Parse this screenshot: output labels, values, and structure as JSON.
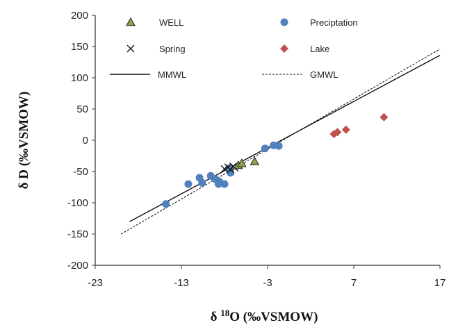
{
  "chart_data": {
    "type": "scatter",
    "xlabel": "δ 18O (‰VSMOW)",
    "xlabel_parts": {
      "prefix": "δ ",
      "sup": "18",
      "suffix": "O (‰VSMOW)"
    },
    "ylabel": "δ D (‰VSMOW)",
    "xlim": [
      -23,
      17
    ],
    "ylim": [
      -200,
      200
    ],
    "xticks": [
      "-23",
      "-13",
      "-3",
      "7",
      "17"
    ],
    "yticks": [
      "-200",
      "-150",
      "-100",
      "-50",
      "0",
      "50",
      "100",
      "150",
      "200"
    ],
    "grid": false,
    "legend_position": "top",
    "series": [
      {
        "name": "WELL",
        "marker": "triangle",
        "color": "#8ea34a",
        "x": [
          -6.4,
          -6.0,
          -4.5
        ],
        "y": [
          -40,
          -37,
          -34
        ]
      },
      {
        "name": "Preciptation",
        "marker": "circle",
        "color": "#4f81bd",
        "x": [
          -14.8,
          -12.2,
          -10.9,
          -10.6,
          -9.6,
          -9.1,
          -8.7,
          -8.6,
          -8.0,
          -7.5,
          -7.3,
          -3.3,
          -2.3,
          -1.7
        ],
        "y": [
          -102,
          -70,
          -60,
          -68,
          -57,
          -62,
          -70,
          -66,
          -70,
          -45,
          -52,
          -13,
          -8,
          -9
        ]
      },
      {
        "name": "Spring",
        "marker": "x",
        "color": "#1a1a1a",
        "x": [
          -8.0,
          -7.6,
          -7.3,
          -7.0,
          -6.8
        ],
        "y": [
          -46,
          -43,
          -47,
          -42,
          -44
        ]
      },
      {
        "name": "Lake",
        "marker": "diamond",
        "color": "#c0504d",
        "x": [
          4.7,
          5.1,
          6.1,
          10.5
        ],
        "y": [
          10,
          13,
          17,
          37
        ]
      }
    ],
    "lines": [
      {
        "name": "MMWL",
        "style": "solid",
        "x": [
          -19,
          17
        ],
        "y": [
          -130,
          136
        ]
      },
      {
        "name": "GMWL",
        "style": "dashed",
        "x": [
          -20,
          17
        ],
        "y": [
          -150,
          146
        ]
      }
    ]
  }
}
